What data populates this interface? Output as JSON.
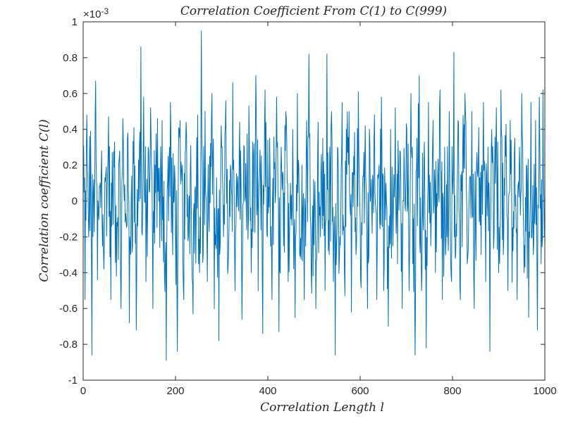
{
  "chart_data": {
    "type": "line",
    "title": "Correlation Coefficient From C(1) to C(999)",
    "xlabel": "Correlation Length l",
    "ylabel": "Correlation coefficient C(l)",
    "xlim": [
      0,
      1000
    ],
    "ylim": [
      -1,
      1
    ],
    "x_ticks": [
      0,
      200,
      400,
      600,
      800,
      1000
    ],
    "x_tick_labels": [
      "0",
      "200",
      "400",
      "600",
      "800",
      "1000"
    ],
    "y_ticks": [
      -1,
      -0.8,
      -0.6,
      -0.4,
      -0.2,
      0,
      0.2,
      0.4,
      0.6,
      0.8,
      1
    ],
    "y_tick_labels": [
      "-1",
      "-0.8",
      "-0.6",
      "-0.4",
      "-0.2",
      "0",
      "0.2",
      "0.4",
      "0.6",
      "0.8",
      "1"
    ],
    "y_exponent_label": "×10",
    "y_exponent_power": "-3",
    "y_scale_factor": 0.001,
    "grid": false,
    "series_color": "#0072BD",
    "series": [
      {
        "x_start": 1,
        "x_end": 999,
        "points": [
          [
            1,
            0.31
          ],
          [
            4,
            -0.55
          ],
          [
            8,
            0.48
          ],
          [
            12,
            -0.2
          ],
          [
            16,
            0.39
          ],
          [
            19,
            -0.86
          ],
          [
            23,
            0.12
          ],
          [
            27,
            0.67
          ],
          [
            31,
            -0.44
          ],
          [
            36,
            0.08
          ],
          [
            40,
            0.28
          ],
          [
            45,
            -0.38
          ],
          [
            50,
            0.19
          ],
          [
            55,
            0.47
          ],
          [
            60,
            -0.55
          ],
          [
            64,
            0.05
          ],
          [
            68,
            0.33
          ],
          [
            72,
            -0.42
          ],
          [
            77,
            0.2
          ],
          [
            82,
            -0.6
          ],
          [
            86,
            0.46
          ],
          [
            91,
            -0.12
          ],
          [
            96,
            0.35
          ],
          [
            100,
            -0.68
          ],
          [
            105,
            0.14
          ],
          [
            110,
            0.41
          ],
          [
            115,
            -0.72
          ],
          [
            120,
            0.23
          ],
          [
            125,
            0.86
          ],
          [
            128,
            -0.19
          ],
          [
            131,
            0.58
          ],
          [
            136,
            -0.45
          ],
          [
            141,
            0.3
          ],
          [
            146,
            0.52
          ],
          [
            151,
            -0.6
          ],
          [
            156,
            0.2
          ],
          [
            161,
            0.46
          ],
          [
            166,
            -0.26
          ],
          [
            171,
            0.45
          ],
          [
            176,
            -0.4
          ],
          [
            180,
            -0.89
          ],
          [
            184,
            0.25
          ],
          [
            189,
            0.55
          ],
          [
            194,
            -0.3
          ],
          [
            199,
            0.12
          ],
          [
            204,
            -0.84
          ],
          [
            208,
            0.4
          ],
          [
            213,
            0.17
          ],
          [
            218,
            -0.55
          ],
          [
            223,
            0.44
          ],
          [
            228,
            -0.2
          ],
          [
            233,
            0.31
          ],
          [
            238,
            -0.63
          ],
          [
            243,
            0.08
          ],
          [
            248,
            0.48
          ],
          [
            252,
            -0.4
          ],
          [
            256,
            0.95
          ],
          [
            260,
            -0.3
          ],
          [
            264,
            0.5
          ],
          [
            269,
            -0.45
          ],
          [
            274,
            0.25
          ],
          [
            279,
            0.6
          ],
          [
            284,
            -0.6
          ],
          [
            289,
            0.13
          ],
          [
            294,
            -0.78
          ],
          [
            299,
            0.42
          ],
          [
            304,
            -0.2
          ],
          [
            309,
            0.56
          ],
          [
            314,
            -0.37
          ],
          [
            319,
            0.2
          ],
          [
            324,
            0.66
          ],
          [
            329,
            -0.5
          ],
          [
            334,
            0.1
          ],
          [
            339,
            0.44
          ],
          [
            344,
            -0.66
          ],
          [
            349,
            0.3
          ],
          [
            354,
            -0.16
          ],
          [
            359,
            0.53
          ],
          [
            364,
            -0.4
          ],
          [
            369,
            0.25
          ],
          [
            374,
            0.7
          ],
          [
            379,
            -0.5
          ],
          [
            384,
            0.14
          ],
          [
            389,
            -0.74
          ],
          [
            394,
            0.62
          ],
          [
            399,
            -0.2
          ],
          [
            404,
            0.35
          ],
          [
            409,
            -0.55
          ],
          [
            414,
            0.18
          ],
          [
            419,
            0.58
          ],
          [
            424,
            -0.73
          ],
          [
            429,
            0.3
          ],
          [
            434,
            -0.25
          ],
          [
            439,
            0.5
          ],
          [
            444,
            -0.45
          ],
          [
            449,
            0.1
          ],
          [
            454,
            0.4
          ],
          [
            459,
            -0.65
          ],
          [
            464,
            0.6
          ],
          [
            469,
            -0.3
          ],
          [
            474,
            0.2
          ],
          [
            479,
            -0.55
          ],
          [
            484,
            0.45
          ],
          [
            489,
            0.82
          ],
          [
            494,
            -0.4
          ],
          [
            499,
            0.12
          ],
          [
            504,
            -0.6
          ],
          [
            509,
            0.44
          ],
          [
            514,
            -0.2
          ],
          [
            519,
            0.35
          ],
          [
            524,
            -0.5
          ],
          [
            528,
            0.82
          ],
          [
            533,
            -0.3
          ],
          [
            538,
            0.5
          ],
          [
            542,
            -0.45
          ],
          [
            546,
            -0.86
          ],
          [
            551,
            0.3
          ],
          [
            556,
            -0.2
          ],
          [
            561,
            0.55
          ],
          [
            566,
            -0.4
          ],
          [
            571,
            0.15
          ],
          [
            576,
            0.5
          ],
          [
            581,
            -0.62
          ],
          [
            586,
            0.25
          ],
          [
            591,
            -0.3
          ],
          [
            596,
            0.61
          ],
          [
            601,
            -0.44
          ],
          [
            606,
            0.14
          ],
          [
            611,
            0.42
          ],
          [
            616,
            -0.6
          ],
          [
            621,
            0.32
          ],
          [
            626,
            -0.18
          ],
          [
            631,
            0.48
          ],
          [
            636,
            -0.55
          ],
          [
            641,
            0.2
          ],
          [
            646,
            0.58
          ],
          [
            651,
            -0.5
          ],
          [
            656,
            0.1
          ],
          [
            661,
            -0.7
          ],
          [
            666,
            0.4
          ],
          [
            671,
            -0.25
          ],
          [
            676,
            0.52
          ],
          [
            681,
            -0.35
          ],
          [
            686,
            0.28
          ],
          [
            691,
            -0.6
          ],
          [
            696,
            0.15
          ],
          [
            701,
            0.4
          ],
          [
            706,
            -0.5
          ],
          [
            710,
            0.6
          ],
          [
            714,
            -0.35
          ],
          [
            719,
            -0.86
          ],
          [
            723,
            0.35
          ],
          [
            728,
            0.7
          ],
          [
            733,
            -0.5
          ],
          [
            738,
            0.2
          ],
          [
            743,
            -0.82
          ],
          [
            748,
            0.55
          ],
          [
            753,
            -0.25
          ],
          [
            758,
            0.45
          ],
          [
            763,
            -0.4
          ],
          [
            768,
            0.15
          ],
          [
            773,
            0.62
          ],
          [
            778,
            -0.55
          ],
          [
            783,
            0.3
          ],
          [
            788,
            -0.2
          ],
          [
            793,
            0.5
          ],
          [
            798,
            -0.45
          ],
          [
            803,
            0.83
          ],
          [
            807,
            -0.3
          ],
          [
            812,
            0.45
          ],
          [
            817,
            -0.55
          ],
          [
            822,
            0.25
          ],
          [
            827,
            0.6
          ],
          [
            832,
            -0.35
          ],
          [
            837,
            0.12
          ],
          [
            842,
            0.5
          ],
          [
            847,
            -0.6
          ],
          [
            852,
            0.2
          ],
          [
            857,
            0.41
          ],
          [
            862,
            -0.3
          ],
          [
            867,
            0.55
          ],
          [
            872,
            -0.45
          ],
          [
            877,
            0.3
          ],
          [
            881,
            -0.84
          ],
          [
            885,
            0.4
          ],
          [
            890,
            -0.2
          ],
          [
            895,
            0.52
          ],
          [
            900,
            -0.4
          ],
          [
            905,
            0.62
          ],
          [
            910,
            -0.3
          ],
          [
            915,
            0.25
          ],
          [
            920,
            -0.5
          ],
          [
            925,
            0.45
          ],
          [
            930,
            -0.15
          ],
          [
            935,
            0.35
          ],
          [
            940,
            -0.55
          ],
          [
            945,
            0.3
          ],
          [
            950,
            0.6
          ],
          [
            955,
            -0.4
          ],
          [
            960,
            0.2
          ],
          [
            965,
            -0.65
          ],
          [
            970,
            0.55
          ],
          [
            975,
            -0.3
          ],
          [
            980,
            0.45
          ],
          [
            984,
            -0.72
          ],
          [
            988,
            0.58
          ],
          [
            992,
            -0.35
          ],
          [
            996,
            0.62
          ],
          [
            999,
            -0.2
          ]
        ]
      }
    ]
  }
}
